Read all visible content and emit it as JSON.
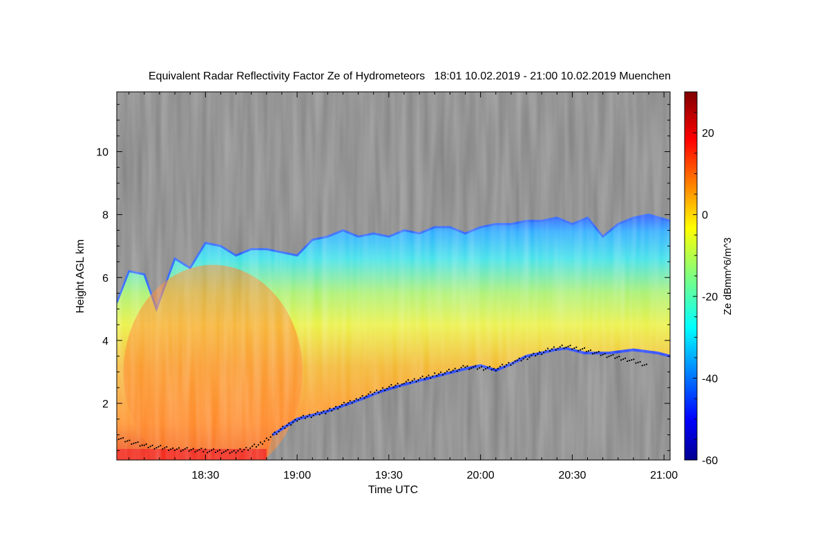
{
  "chart_data": {
    "type": "heatmap",
    "title": "Equivalent Radar Reflectivity Factor Ze of Hydrometeors   18:01 10.02.2019 - 21:00 10.02.2019 Muenchen",
    "xlabel": "Time UTC",
    "ylabel": "Height AGL km",
    "colorbar_label": "Ze dBmm^6/m^3",
    "xlim_minutes_utc": [
      1081,
      1262
    ],
    "x_ticks": [
      "18:30",
      "19:00",
      "19:30",
      "20:00",
      "20:30",
      "21:00"
    ],
    "ylim_km": [
      0.2,
      11.9
    ],
    "y_ticks": [
      "2",
      "4",
      "6",
      "8",
      "10"
    ],
    "colorbar_range_dbz": [
      -60,
      30
    ],
    "colorbar_ticks": [
      "20",
      "0",
      "-20",
      "-40",
      "-60"
    ],
    "colormap": "jet",
    "no_signal_color": "#808080",
    "melting_layer_color": "#000000",
    "cloud_top_km": [
      [
        1081,
        5.2
      ],
      [
        1085,
        6.2
      ],
      [
        1090,
        6.1
      ],
      [
        1094,
        5.0
      ],
      [
        1100,
        6.6
      ],
      [
        1105,
        6.3
      ],
      [
        1110,
        7.1
      ],
      [
        1115,
        7.0
      ],
      [
        1120,
        6.7
      ],
      [
        1125,
        6.9
      ],
      [
        1130,
        6.9
      ],
      [
        1135,
        6.8
      ],
      [
        1140,
        6.7
      ],
      [
        1145,
        7.2
      ],
      [
        1150,
        7.3
      ],
      [
        1155,
        7.5
      ],
      [
        1160,
        7.3
      ],
      [
        1165,
        7.4
      ],
      [
        1170,
        7.3
      ],
      [
        1175,
        7.5
      ],
      [
        1180,
        7.4
      ],
      [
        1185,
        7.6
      ],
      [
        1190,
        7.6
      ],
      [
        1195,
        7.4
      ],
      [
        1200,
        7.6
      ],
      [
        1205,
        7.7
      ],
      [
        1210,
        7.7
      ],
      [
        1215,
        7.8
      ],
      [
        1220,
        7.8
      ],
      [
        1225,
        7.9
      ],
      [
        1230,
        7.7
      ],
      [
        1235,
        7.9
      ],
      [
        1240,
        7.3
      ],
      [
        1245,
        7.7
      ],
      [
        1250,
        7.9
      ],
      [
        1255,
        8.0
      ],
      [
        1262,
        7.8
      ]
    ],
    "cloud_base_km": [
      [
        1081,
        0.2
      ],
      [
        1130,
        0.2
      ],
      [
        1132,
        1.0
      ],
      [
        1140,
        1.5
      ],
      [
        1150,
        1.75
      ],
      [
        1160,
        2.1
      ],
      [
        1168,
        2.4
      ],
      [
        1175,
        2.6
      ],
      [
        1185,
        2.85
      ],
      [
        1195,
        3.1
      ],
      [
        1200,
        3.2
      ],
      [
        1205,
        3.05
      ],
      [
        1210,
        3.25
      ],
      [
        1215,
        3.5
      ],
      [
        1220,
        3.6
      ],
      [
        1224,
        3.7
      ],
      [
        1228,
        3.75
      ],
      [
        1234,
        3.6
      ],
      [
        1242,
        3.6
      ],
      [
        1250,
        3.7
      ],
      [
        1258,
        3.6
      ],
      [
        1262,
        3.5
      ]
    ],
    "melting_layer_km": [
      [
        1081,
        0.9
      ],
      [
        1090,
        0.65
      ],
      [
        1100,
        0.55
      ],
      [
        1110,
        0.5
      ],
      [
        1120,
        0.45
      ],
      [
        1128,
        0.7
      ],
      [
        1132,
        1.0
      ],
      [
        1140,
        1.5
      ],
      [
        1150,
        1.75
      ],
      [
        1160,
        2.15
      ],
      [
        1168,
        2.45
      ],
      [
        1175,
        2.65
      ],
      [
        1185,
        2.9
      ],
      [
        1195,
        3.15
      ],
      [
        1205,
        3.1
      ],
      [
        1212,
        3.35
      ],
      [
        1218,
        3.55
      ],
      [
        1224,
        3.75
      ],
      [
        1228,
        3.8
      ],
      [
        1234,
        3.7
      ],
      [
        1240,
        3.55
      ],
      [
        1248,
        3.4
      ],
      [
        1255,
        3.2
      ]
    ],
    "max_reflectivity_core": {
      "x_range": [
        1090,
        1135
      ],
      "height_km": 3.0,
      "ze_dbz": 12
    }
  }
}
